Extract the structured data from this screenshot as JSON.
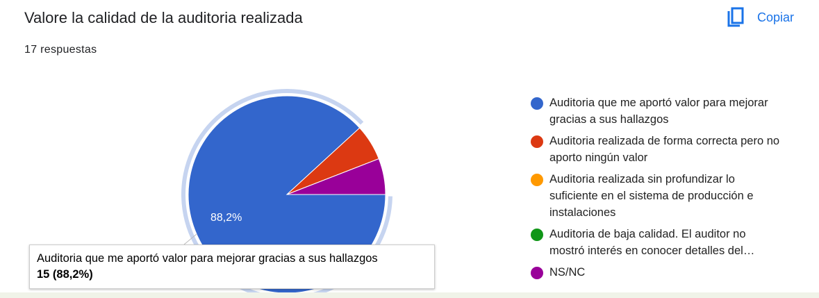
{
  "header": {
    "title": "Valore la calidad de la auditoria realizada",
    "subtitle": "17 respuestas",
    "copy_button": "Copiar"
  },
  "chart_data": {
    "type": "pie",
    "categories": [
      "Auditoria que me aportó valor para mejorar gracias a sus hallazgos",
      "Auditoria realizada de forma correcta pero no aporto ningún valor",
      "Auditoria realizada sin profundizar lo suficiente en el sistema de producción e instalaciones",
      "Auditoria de baja calidad. El auditor no mostró interés en conocer detalles del…",
      "NS/NC"
    ],
    "values": [
      88.2,
      5.9,
      0,
      0,
      5.9
    ],
    "value_labels": [
      "88,2%",
      null,
      null,
      null,
      null
    ],
    "colors": [
      "#3366cc",
      "#dc3912",
      "#ff9900",
      "#109618",
      "#990099"
    ],
    "tooltip": {
      "title": "Auditoria que me aportó valor para mejorar gracias a sus hallazgos",
      "value": "15 (88,2%)"
    }
  }
}
